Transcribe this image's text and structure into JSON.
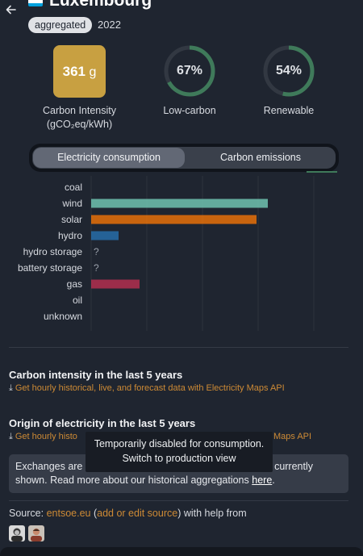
{
  "header": {
    "country": "Luxembourg",
    "badge": "aggregated",
    "year": "2022"
  },
  "metrics": {
    "carbon_intensity": {
      "value": "361",
      "unit": "g",
      "label_line1": "Carbon Intensity",
      "label_line2": "(gCO₂eq/kWh)",
      "color": "#c8a041"
    },
    "low_carbon": {
      "value": "67%",
      "label": "Low-carbon",
      "fraction": 0.67
    },
    "renewable": {
      "value": "54%",
      "label": "Renewable",
      "fraction": 0.54
    }
  },
  "toggle": {
    "consumption": "Electricity consumption",
    "emissions": "Carbon emissions",
    "selected": "consumption"
  },
  "chart_data": {
    "type": "bar",
    "orientation": "horizontal",
    "categories": [
      "coal",
      "wind",
      "solar",
      "hydro",
      "hydro storage",
      "battery storage",
      "gas",
      "oil",
      "unknown"
    ],
    "values": [
      0,
      219,
      205,
      34,
      null,
      null,
      60,
      0,
      0
    ],
    "missing_label": "?",
    "colors": {
      "coal": "#333333",
      "wind": "#74cdb9",
      "solar": "#f27406",
      "hydro": "#2772b2",
      "gas": "#bb2f51",
      "oil": "#867d66",
      "unknown": "#acacac"
    },
    "grid": true
  },
  "sections": {
    "ci_title": "Carbon intensity in the last 5 years",
    "ci_link": "Get hourly historical, live, and forecast data with Electricity Maps API",
    "origin_title": "Origin of electricity in the last 5 years",
    "origin_link_left": "Get hourly histo",
    "origin_link_right": "Maps API"
  },
  "tooltip": {
    "line1": "Temporarily disabled for consumption.",
    "line2": "Switch to production view"
  },
  "notice": {
    "left": "Exchanges are",
    "right": "currently",
    "line2": "shown. Read more about our historical aggregations",
    "link": "here",
    "end": "."
  },
  "source": {
    "label": "Source:",
    "org": "entsoe.eu",
    "paren_open": " (",
    "edit_link": "add or edit source",
    "paren_close": ")",
    "suffix": " with help from"
  },
  "icons": {
    "back": "arrow-left-icon",
    "download": "download-icon"
  }
}
